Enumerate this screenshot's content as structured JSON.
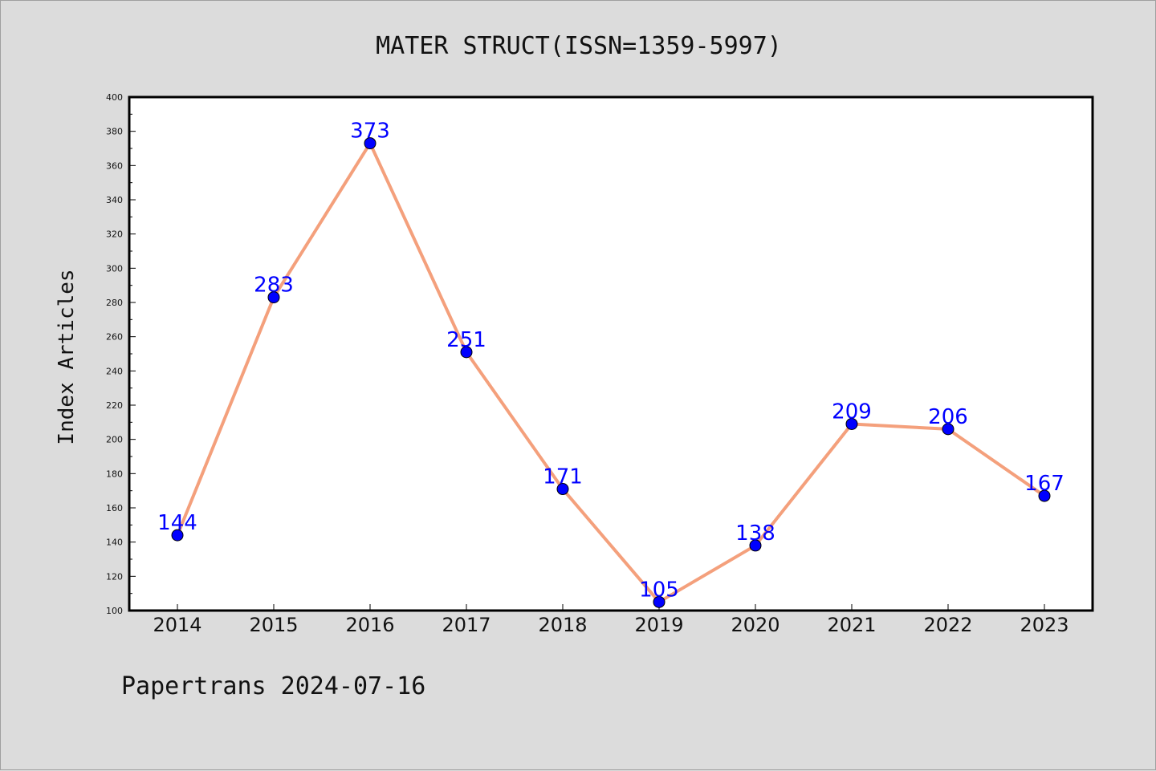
{
  "footer": "Papertrans 2024-07-16",
  "colors": {
    "background": "#dcdcdc",
    "plot_area": "#ffffff",
    "line": "#f4a07c",
    "marker": "#0000ff",
    "data_label": "#0000ff"
  },
  "chart_data": {
    "type": "line",
    "title": "MATER STRUCT(ISSN=1359-5997)",
    "xlabel": "",
    "ylabel": "Index Articles",
    "categories": [
      "2014",
      "2015",
      "2016",
      "2017",
      "2018",
      "2019",
      "2020",
      "2021",
      "2022",
      "2023"
    ],
    "series": [
      {
        "values": [
          144,
          283,
          373,
          251,
          171,
          105,
          138,
          209,
          206,
          167
        ]
      }
    ],
    "ylim": [
      100,
      400
    ],
    "yticks": [
      100,
      120,
      140,
      160,
      180,
      200,
      220,
      240,
      260,
      280,
      300,
      320,
      340,
      360,
      380,
      400
    ],
    "grid": false,
    "legend": "none",
    "data_labels": true
  }
}
